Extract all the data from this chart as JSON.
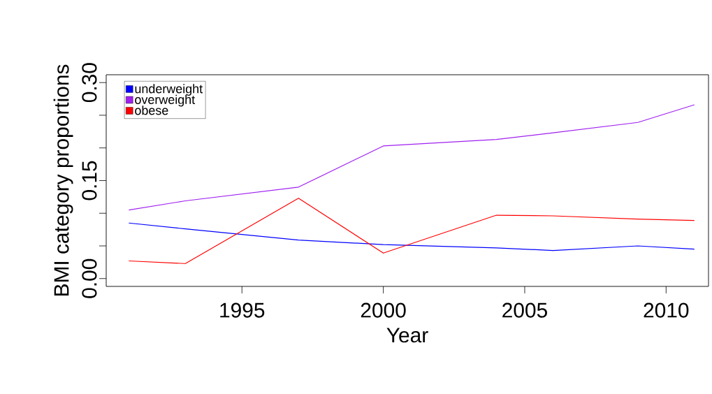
{
  "chart_data": {
    "type": "line",
    "xlabel": "Year",
    "ylabel": "BMI category proportions",
    "x": [
      1991,
      1993,
      1997,
      2000,
      2004,
      2006,
      2009,
      2011
    ],
    "series": [
      {
        "name": "underweight",
        "color": "#0000ff",
        "values": [
          0.085,
          0.076,
          0.059,
          0.052,
          0.047,
          0.043,
          0.05,
          0.045
        ]
      },
      {
        "name": "overweight",
        "color": "#a020f0",
        "values": [
          0.105,
          0.119,
          0.14,
          0.203,
          0.213,
          0.223,
          0.239,
          0.266
        ]
      },
      {
        "name": "obese",
        "color": "#ff0000",
        "values": [
          0.027,
          0.023,
          0.123,
          0.039,
          0.097,
          0.096,
          0.091,
          0.089
        ]
      }
    ],
    "xlim": [
      1990.2,
      2011.5
    ],
    "ylim": [
      -0.012,
      0.312
    ],
    "xticks": [
      1995,
      2000,
      2005,
      2010
    ],
    "yticks": [
      {
        "value": 0,
        "label": "0.00"
      },
      {
        "value": 0.05,
        "label": null
      },
      {
        "value": 0.1,
        "label": null
      },
      {
        "value": 0.15,
        "label": "0.15"
      },
      {
        "value": 0.2,
        "label": null
      },
      {
        "value": 0.25,
        "label": null
      },
      {
        "value": 0.3,
        "label": "0.30"
      }
    ],
    "legend": "top left"
  }
}
